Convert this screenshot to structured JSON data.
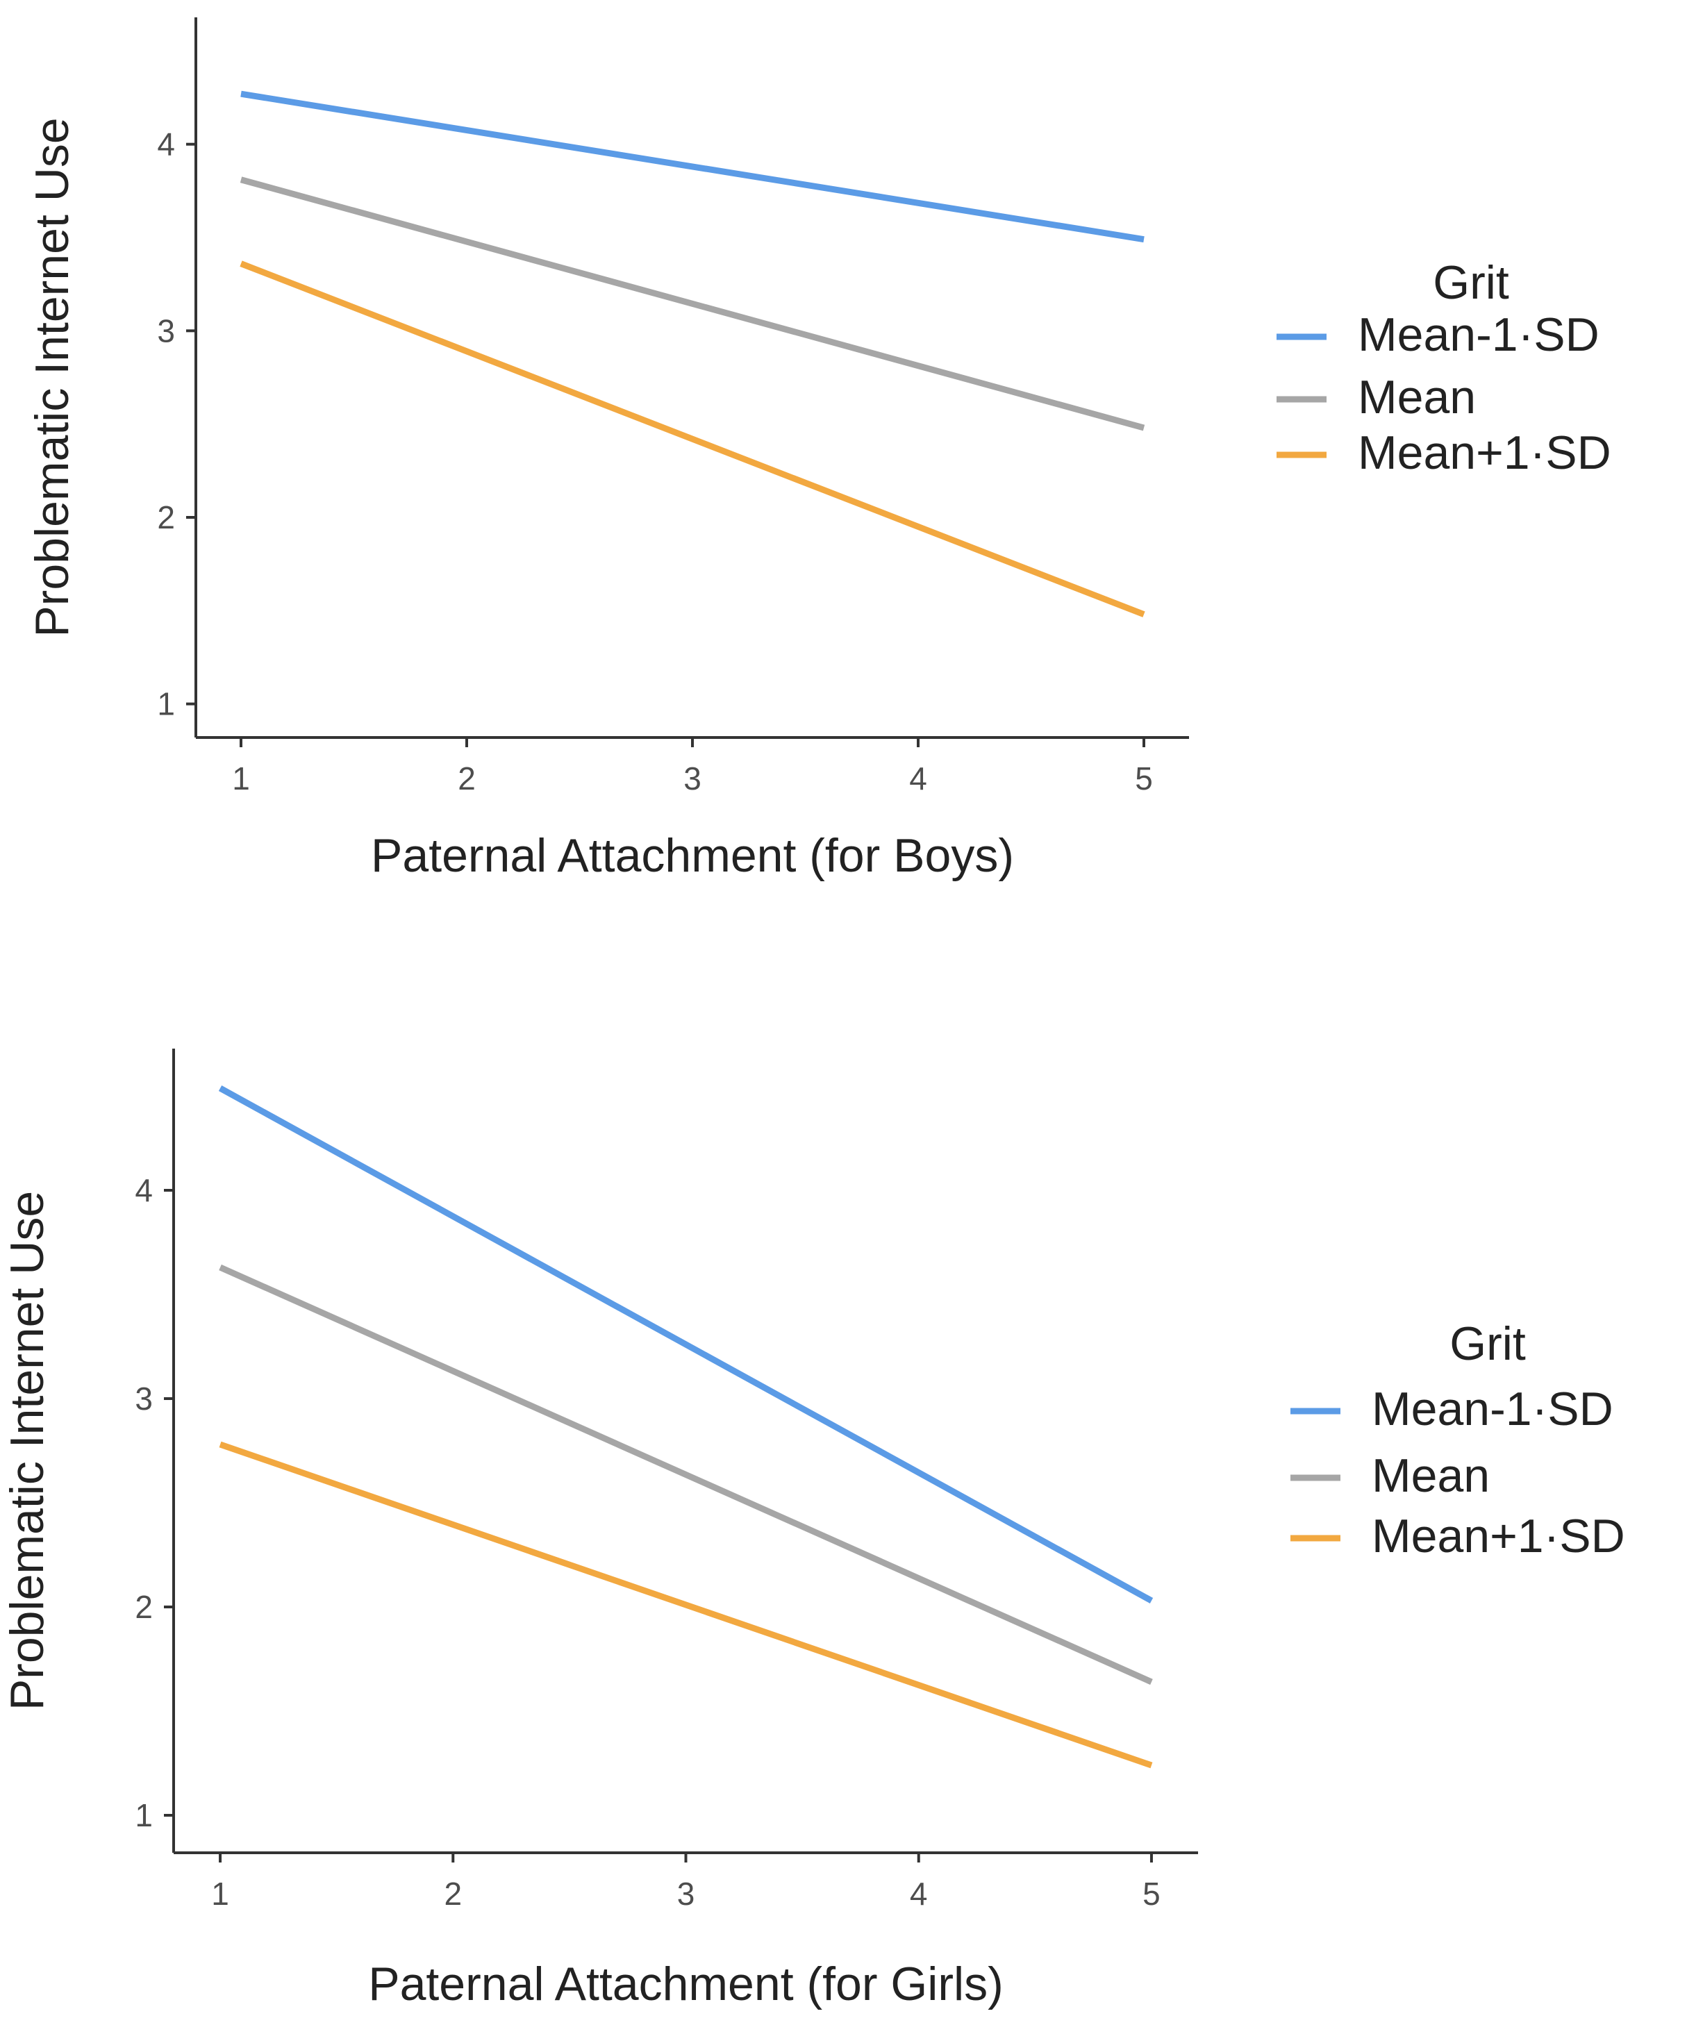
{
  "chart_data": [
    {
      "type": "line",
      "title": "",
      "xlabel": "Paternal Attachment (for Boys)",
      "ylabel": "Problematic Internet Use",
      "x": [
        1,
        5
      ],
      "xticks": [
        1,
        2,
        3,
        4,
        5
      ],
      "yticks": [
        1,
        2,
        3,
        4
      ],
      "xlim": [
        0.8,
        5.2
      ],
      "ylim": [
        0.82,
        4.68
      ],
      "grid": false,
      "legend_title": "Grit",
      "legend_position": "right",
      "series": [
        {
          "name": "Mean-1·SD",
          "values": [
            4.27,
            3.49
          ],
          "color": "#5b9be6"
        },
        {
          "name": "Mean",
          "values": [
            3.81,
            2.48
          ],
          "color": "#a6a6a6"
        },
        {
          "name": "Mean+1·SD",
          "values": [
            3.36,
            1.48
          ],
          "color": "#f2a840"
        }
      ]
    },
    {
      "type": "line",
      "title": "",
      "xlabel": "Paternal Attachment (for Girls)",
      "ylabel": "Problematic Internet Use",
      "x": [
        1,
        5
      ],
      "xticks": [
        1,
        2,
        3,
        4,
        5
      ],
      "yticks": [
        1,
        2,
        3,
        4
      ],
      "xlim": [
        0.8,
        5.2
      ],
      "ylim": [
        0.82,
        4.68
      ],
      "grid": false,
      "legend_title": "Grit",
      "legend_position": "right",
      "series": [
        {
          "name": "Mean-1·SD",
          "values": [
            4.49,
            2.03
          ],
          "color": "#5b9be6"
        },
        {
          "name": "Mean",
          "values": [
            3.63,
            1.64
          ],
          "color": "#a6a6a6"
        },
        {
          "name": "Mean+1·SD",
          "values": [
            2.78,
            1.24
          ],
          "color": "#f2a840"
        }
      ]
    }
  ]
}
